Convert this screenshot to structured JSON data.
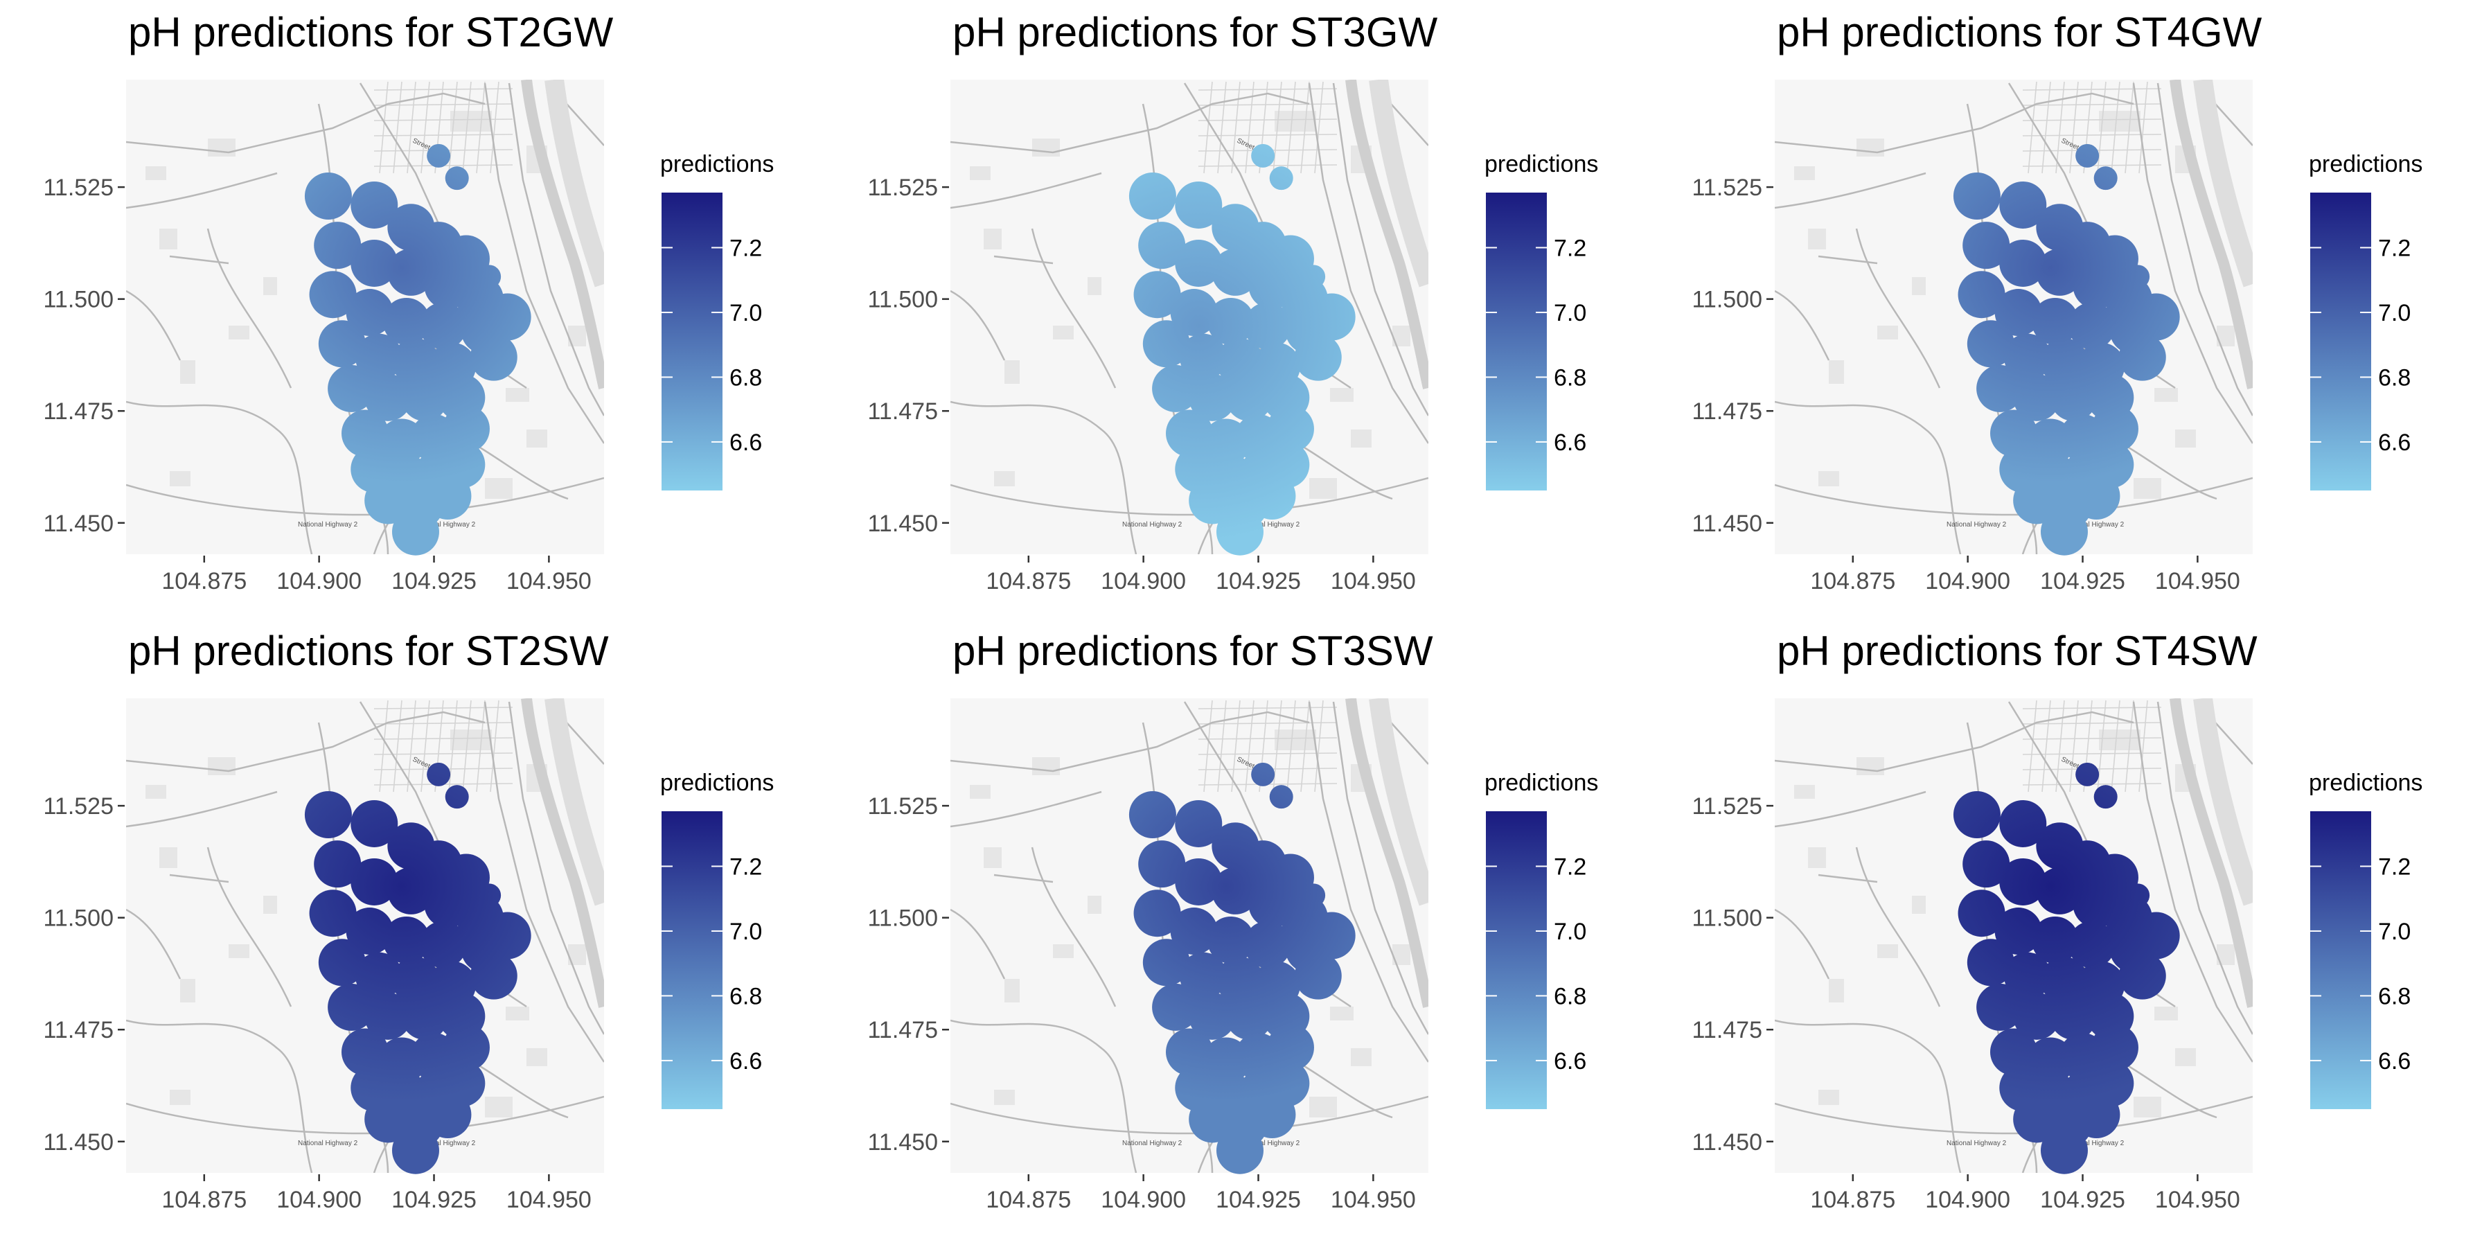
{
  "colors": {
    "low": "#87ceeb",
    "high": "#1a1a80",
    "map_bg": "#f6f6f6",
    "road": "#b8b8b8",
    "river": "#cfcfcf"
  },
  "road_labels": [
    "National Highway 2",
    "National Highway 2",
    "Street 271"
  ],
  "chart_data": [
    {
      "type": "heatmap",
      "title": "pH predictions for ST2GW",
      "xlabel": "",
      "ylabel": "",
      "xlim": [
        104.858,
        104.962
      ],
      "ylim": [
        11.443,
        11.549
      ],
      "x_ticks": [
        "104.875",
        "104.900",
        "104.925",
        "104.950"
      ],
      "x_tick_values": [
        104.875,
        104.9,
        104.925,
        104.95
      ],
      "y_ticks": [
        "11.525",
        "11.500",
        "11.475",
        "11.450"
      ],
      "y_tick_values": [
        11.525,
        11.5,
        11.475,
        11.45
      ],
      "legend": {
        "title": "predictions",
        "labels": [
          "7.2",
          "7.0",
          "6.8",
          "6.6"
        ],
        "values": [
          7.2,
          7.0,
          6.8,
          6.6
        ],
        "min": 6.45,
        "max": 7.37,
        "position": "right"
      },
      "prediction_range": [
        6.62,
        6.95
      ],
      "peak_location": [
        104.918,
        11.507
      ]
    },
    {
      "type": "heatmap",
      "title": "pH predictions for ST3GW",
      "xlabel": "",
      "ylabel": "",
      "xlim": [
        104.858,
        104.962
      ],
      "ylim": [
        11.443,
        11.549
      ],
      "x_ticks": [
        "104.875",
        "104.900",
        "104.925",
        "104.950"
      ],
      "x_tick_values": [
        104.875,
        104.9,
        104.925,
        104.95
      ],
      "y_ticks": [
        "11.525",
        "11.500",
        "11.475",
        "11.450"
      ],
      "y_tick_values": [
        11.525,
        11.5,
        11.475,
        11.45
      ],
      "legend": {
        "title": "predictions",
        "labels": [
          "7.2",
          "7.0",
          "6.8",
          "6.6"
        ],
        "values": [
          7.2,
          7.0,
          6.8,
          6.6
        ],
        "min": 6.45,
        "max": 7.37,
        "position": "right"
      },
      "prediction_range": [
        6.47,
        6.72
      ],
      "peak_location": [
        104.912,
        11.494
      ]
    },
    {
      "type": "heatmap",
      "title": "pH predictions for ST4GW",
      "xlabel": "",
      "ylabel": "",
      "xlim": [
        104.858,
        104.962
      ],
      "ylim": [
        11.443,
        11.549
      ],
      "x_ticks": [
        "104.875",
        "104.900",
        "104.925",
        "104.950"
      ],
      "x_tick_values": [
        104.875,
        104.9,
        104.925,
        104.95
      ],
      "y_ticks": [
        "11.525",
        "11.500",
        "11.475",
        "11.450"
      ],
      "y_tick_values": [
        11.525,
        11.5,
        11.475,
        11.45
      ],
      "legend": {
        "title": "predictions",
        "labels": [
          "7.2",
          "7.0",
          "6.8",
          "6.6"
        ],
        "values": [
          7.2,
          7.0,
          6.8,
          6.6
        ],
        "min": 6.45,
        "max": 7.37,
        "position": "right"
      },
      "prediction_range": [
        6.68,
        7.02
      ],
      "peak_location": [
        104.918,
        11.507
      ]
    },
    {
      "type": "heatmap",
      "title": "pH predictions for ST2SW",
      "xlabel": "",
      "ylabel": "",
      "xlim": [
        104.858,
        104.962
      ],
      "ylim": [
        11.443,
        11.549
      ],
      "x_ticks": [
        "104.875",
        "104.900",
        "104.925",
        "104.950"
      ],
      "x_tick_values": [
        104.875,
        104.9,
        104.925,
        104.95
      ],
      "y_ticks": [
        "11.525",
        "11.500",
        "11.475",
        "11.450"
      ],
      "y_tick_values": [
        11.525,
        11.5,
        11.475,
        11.45
      ],
      "legend": {
        "title": "predictions",
        "labels": [
          "7.2",
          "7.0",
          "6.8",
          "6.6"
        ],
        "values": [
          7.2,
          7.0,
          6.8,
          6.6
        ],
        "min": 6.45,
        "max": 7.37,
        "position": "right"
      },
      "prediction_range": [
        7.05,
        7.32
      ],
      "peak_location": [
        104.918,
        11.507
      ]
    },
    {
      "type": "heatmap",
      "title": "pH predictions for ST3SW",
      "xlabel": "",
      "ylabel": "",
      "xlim": [
        104.858,
        104.962
      ],
      "ylim": [
        11.443,
        11.549
      ],
      "x_ticks": [
        "104.875",
        "104.900",
        "104.925",
        "104.950"
      ],
      "x_tick_values": [
        104.875,
        104.9,
        104.925,
        104.95
      ],
      "y_ticks": [
        "11.525",
        "11.500",
        "11.475",
        "11.450"
      ],
      "y_tick_values": [
        11.525,
        11.5,
        11.475,
        11.45
      ],
      "legend": {
        "title": "predictions",
        "labels": [
          "7.2",
          "7.0",
          "6.8",
          "6.6"
        ],
        "values": [
          7.2,
          7.0,
          6.8,
          6.6
        ],
        "min": 6.45,
        "max": 7.37,
        "position": "right"
      },
      "prediction_range": [
        6.82,
        7.15
      ],
      "peak_location": [
        104.918,
        11.507
      ]
    },
    {
      "type": "heatmap",
      "title": "pH predictions for ST4SW",
      "xlabel": "",
      "ylabel": "",
      "xlim": [
        104.858,
        104.962
      ],
      "ylim": [
        11.443,
        11.549
      ],
      "x_ticks": [
        "104.875",
        "104.900",
        "104.925",
        "104.950"
      ],
      "x_tick_values": [
        104.875,
        104.9,
        104.925,
        104.95
      ],
      "y_ticks": [
        "11.525",
        "11.500",
        "11.475",
        "11.450"
      ],
      "y_tick_values": [
        11.525,
        11.5,
        11.475,
        11.45
      ],
      "legend": {
        "title": "predictions",
        "labels": [
          "7.2",
          "7.0",
          "6.8",
          "6.6"
        ],
        "values": [
          7.2,
          7.0,
          6.8,
          6.6
        ],
        "min": 6.45,
        "max": 7.37,
        "position": "right"
      },
      "prediction_range": [
        7.1,
        7.35
      ],
      "peak_location": [
        104.918,
        11.507
      ]
    }
  ]
}
